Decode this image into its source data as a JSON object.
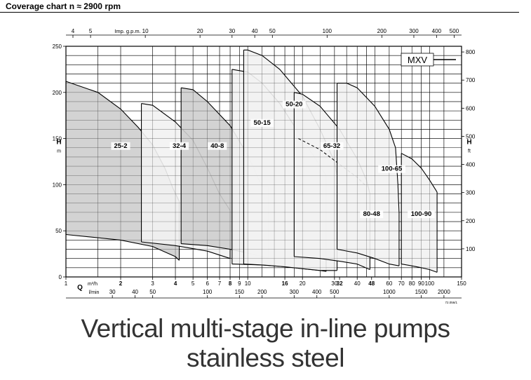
{
  "heading": "Coverage chart n ≈ 2900 rpm",
  "tagline": {
    "line1": "Vertical multi-stage in-line pumps",
    "line2": "stainless steel"
  },
  "chart_data": {
    "type": "area",
    "series_label": "MXV",
    "x_scale": "log",
    "y_scale": "linear",
    "grid": true,
    "legend": "top-right",
    "primary_x": {
      "min": 1,
      "max": 150,
      "unit_label": "m³/h",
      "ticks": [
        1,
        2,
        3,
        4,
        5,
        6,
        7,
        8,
        9,
        10,
        16,
        20,
        30,
        32,
        40,
        48,
        60,
        70,
        80,
        90,
        100,
        150
      ],
      "tick_labels": [
        "1",
        "2",
        "3",
        "4",
        "5",
        "6",
        "7",
        "8",
        "9",
        "10",
        "16",
        "20",
        "30",
        "32",
        "40",
        "48",
        "60",
        "70",
        "80",
        "90",
        "100",
        "150"
      ],
      "bold_ticks": [
        2,
        4,
        8,
        16,
        32,
        48
      ]
    },
    "lmin_axis": {
      "unit_label": "l/min",
      "ticks": [
        30,
        40,
        50,
        100,
        150,
        200,
        300,
        400,
        500,
        1000,
        1500,
        2000
      ],
      "tick_labels": [
        "30",
        "40",
        "50",
        "100",
        "150",
        "200",
        "300",
        "400",
        "500",
        "1000",
        "1500",
        "2000"
      ]
    },
    "Q_label": "Q",
    "gpm_axis": {
      "unit_label": "Imp. g.p.m.",
      "ticks": [
        4,
        5,
        10,
        20,
        30,
        40,
        50,
        100,
        200,
        300,
        400,
        500
      ],
      "tick_labels": [
        "4",
        "5",
        "10",
        "20",
        "30",
        "40",
        "50",
        "100",
        "200",
        "300",
        "400",
        "500"
      ]
    },
    "y_left": {
      "min": 0,
      "max": 250,
      "ticks": [
        0,
        50,
        100,
        150,
        200,
        250
      ],
      "tick_labels": [
        "0",
        "50",
        "100",
        "150",
        "200",
        "250"
      ],
      "label": "H",
      "unit": "m"
    },
    "y_right": {
      "ticks": [
        100,
        200,
        300,
        400,
        500,
        600,
        700,
        800
      ],
      "tick_labels": [
        "100",
        "200",
        "300",
        "400",
        "500",
        "600",
        "700",
        "800"
      ],
      "label": "H",
      "unit": "ft"
    },
    "code": "72.056/1",
    "pumps": [
      {
        "name": "25-2",
        "shade": "#cecece",
        "upper": [
          [
            1,
            212
          ],
          [
            1.5,
            200
          ],
          [
            2,
            182
          ],
          [
            2.5,
            162
          ],
          [
            3,
            143
          ],
          [
            3.5,
            118
          ],
          [
            3.9,
            95
          ],
          [
            4.2,
            82
          ]
        ],
        "lower": [
          [
            1,
            46
          ],
          [
            2,
            40
          ],
          [
            3,
            33
          ],
          [
            4,
            22
          ],
          [
            4.2,
            18
          ]
        ],
        "label_at": [
          2,
          140
        ]
      },
      {
        "name": "32-4",
        "shade": "#f2f2f2",
        "upper": [
          [
            2.6,
            188
          ],
          [
            3,
            186
          ],
          [
            4,
            168
          ],
          [
            5,
            148
          ],
          [
            6,
            118
          ],
          [
            7,
            90
          ],
          [
            8,
            72
          ]
        ],
        "lower": [
          [
            2.6,
            38
          ],
          [
            4,
            34
          ],
          [
            6,
            28
          ],
          [
            8,
            20
          ]
        ],
        "label_at": [
          4.2,
          140
        ]
      },
      {
        "name": "40-8",
        "shade": "#cecece",
        "upper": [
          [
            4.3,
            205
          ],
          [
            5,
            203
          ],
          [
            6,
            190
          ],
          [
            8,
            164
          ],
          [
            10,
            132
          ],
          [
            12,
            98
          ],
          [
            13,
            98
          ]
        ],
        "lower": [
          [
            4.3,
            36
          ],
          [
            6,
            34
          ],
          [
            8,
            30
          ],
          [
            10,
            26
          ],
          [
            12,
            22
          ],
          [
            13,
            20
          ]
        ],
        "label_at": [
          6.8,
          140
        ]
      },
      {
        "name": "50-15",
        "shade": "#f2f2f2",
        "upper": [
          [
            8.2,
            225
          ],
          [
            10,
            222
          ],
          [
            12,
            210
          ],
          [
            15,
            188
          ],
          [
            20,
            150
          ],
          [
            25,
            120
          ],
          [
            27,
            110
          ]
        ],
        "lower": [
          [
            8.2,
            14
          ],
          [
            12,
            13
          ],
          [
            16,
            11
          ],
          [
            20,
            9
          ],
          [
            25,
            7
          ],
          [
            27,
            6
          ]
        ],
        "label_at": [
          12,
          165
        ]
      },
      {
        "name": "50-20",
        "shade": "#f2f2f2",
        "upper": [
          [
            9.5,
            246
          ],
          [
            10,
            246
          ],
          [
            12,
            240
          ],
          [
            15,
            225
          ],
          [
            20,
            196
          ],
          [
            25,
            160
          ],
          [
            30,
            125
          ],
          [
            31,
            110
          ]
        ],
        "lower": [
          [
            9.5,
            14
          ],
          [
            12,
            13
          ],
          [
            16,
            11
          ],
          [
            20,
            9
          ],
          [
            25,
            7
          ],
          [
            31,
            7
          ]
        ],
        "label_at": [
          18,
          185
        ]
      },
      {
        "name": "65-32",
        "shade": "#f2f2f2",
        "upper": [
          [
            18,
            200
          ],
          [
            20,
            198
          ],
          [
            25,
            185
          ],
          [
            32,
            160
          ],
          [
            40,
            128
          ],
          [
            45,
            105
          ],
          [
            47,
            90
          ]
        ],
        "lower": [
          [
            18,
            22
          ],
          [
            25,
            20
          ],
          [
            32,
            17
          ],
          [
            40,
            14
          ],
          [
            47,
            8
          ]
        ],
        "mid": [
          [
            19,
            150
          ],
          [
            25,
            138
          ],
          [
            32,
            122
          ],
          [
            40,
            108
          ],
          [
            45,
            98
          ]
        ],
        "label_at": [
          29,
          140
        ]
      },
      {
        "name": "80-48",
        "shade": "#f2f2f2",
        "upper": [
          [
            31,
            210
          ],
          [
            35,
            210
          ],
          [
            40,
            205
          ],
          [
            50,
            185
          ],
          [
            60,
            160
          ],
          [
            65,
            140
          ],
          [
            67,
            100
          ],
          [
            68,
            68
          ]
        ],
        "lower": [
          [
            31,
            30
          ],
          [
            40,
            26
          ],
          [
            50,
            20
          ],
          [
            60,
            14
          ],
          [
            68,
            12
          ]
        ],
        "label_at": [
          48,
          66
        ]
      },
      {
        "name": "100-65",
        "shade": "#f2f2f2",
        "upper": [
          [
            70,
            134
          ],
          [
            80,
            128
          ],
          [
            90,
            118
          ],
          [
            100,
            105
          ],
          [
            110,
            92
          ]
        ],
        "lower": [
          [
            70,
            14
          ],
          [
            80,
            12
          ],
          [
            90,
            10
          ],
          [
            100,
            8
          ],
          [
            110,
            5
          ]
        ],
        "label_at": [
          62,
          115
        ]
      },
      {
        "name": "100-90",
        "shade": "#f2f2f2",
        "upper": [],
        "lower": [],
        "label_at": [
          90,
          66
        ]
      }
    ]
  }
}
